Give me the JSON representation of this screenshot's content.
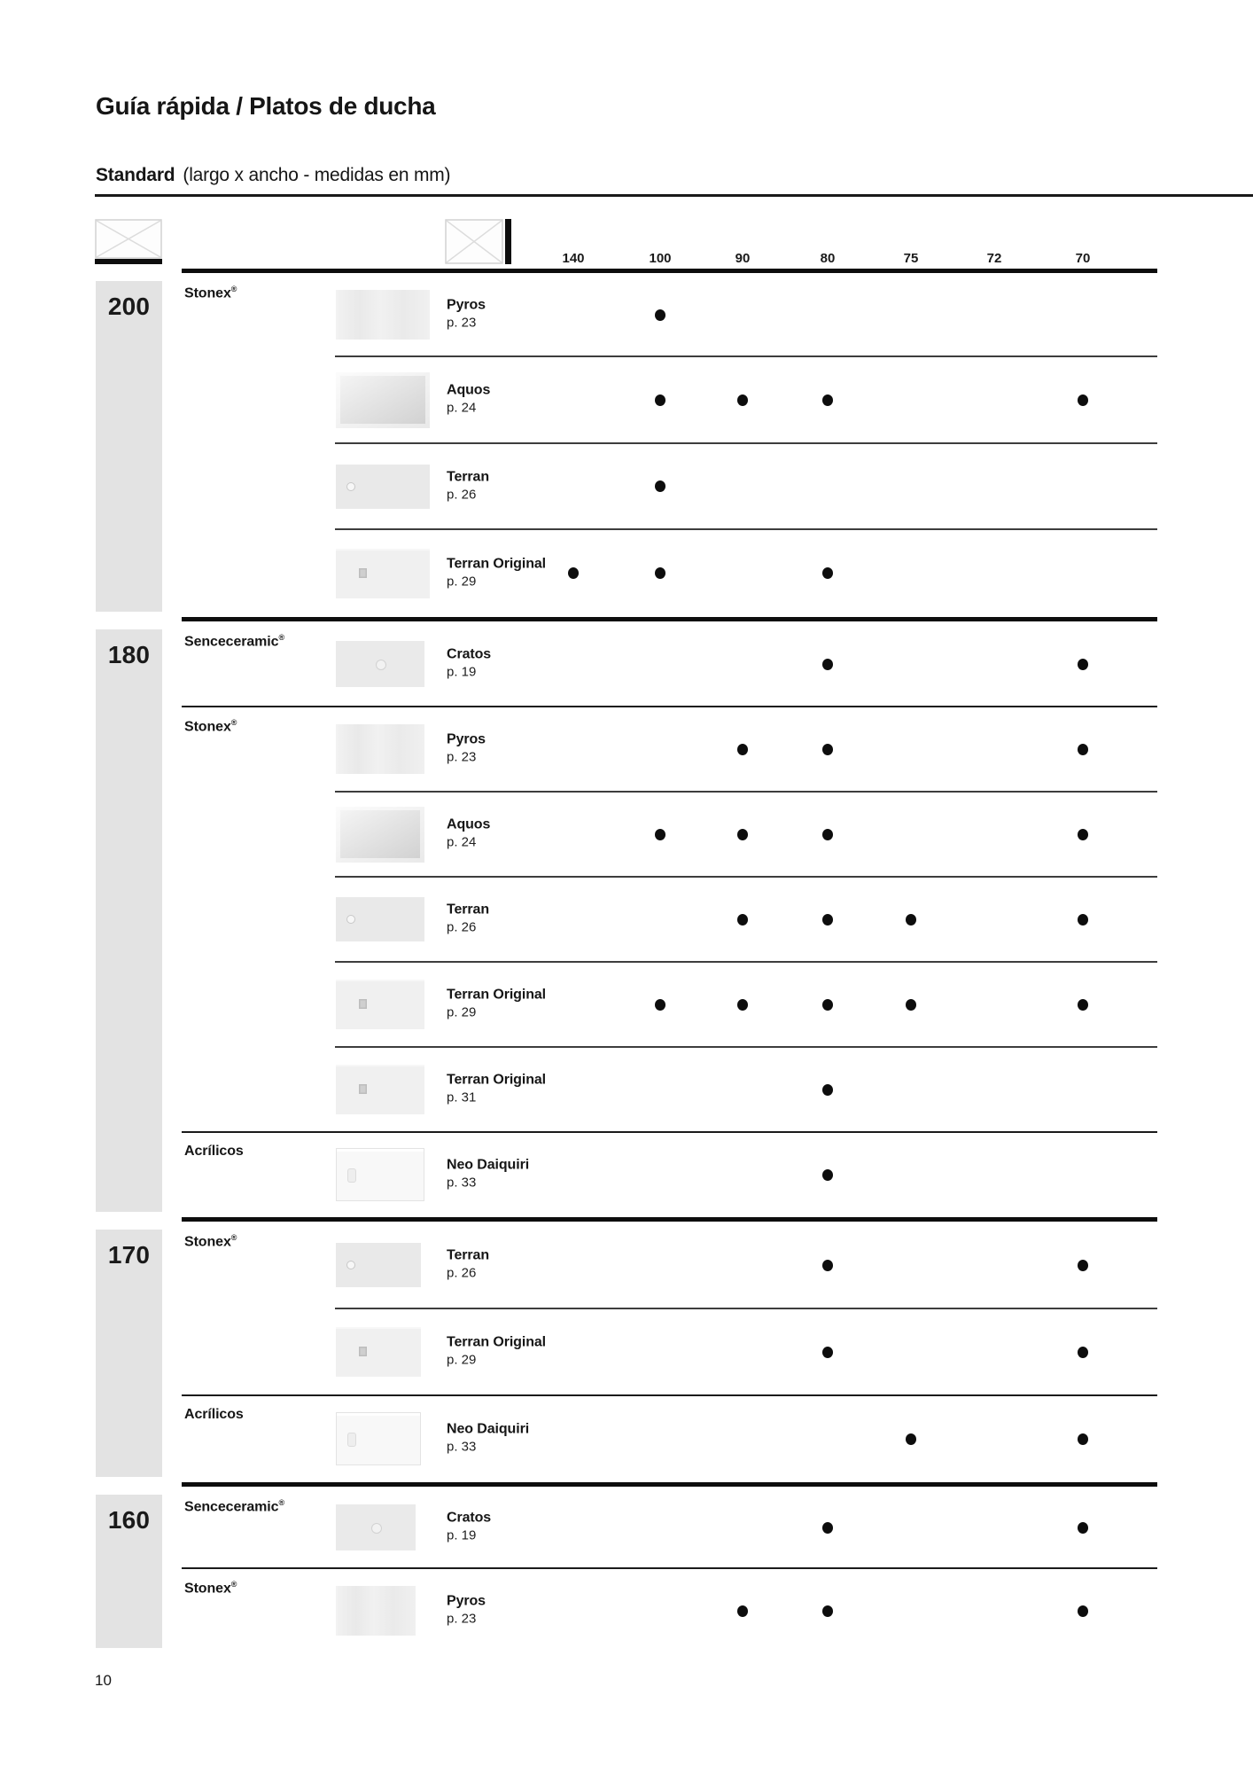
{
  "page": {
    "title": "Guía rápida / Platos de ducha",
    "subtitle_bold": "Standard",
    "subtitle_rest": "(largo x ancho - medidas en mm)",
    "page_number": "10"
  },
  "colors": {
    "text": "#161616",
    "group_box_bg": "#e3e3e3",
    "dot": "#0d0d0d",
    "rule_dark": "#0d0d0d"
  },
  "table": {
    "legend": {
      "length_icon": "tray-length-icon",
      "width_icon": "tray-width-icon"
    },
    "width_columns": [
      "140",
      "100",
      "90",
      "80",
      "75",
      "72",
      "70"
    ],
    "groups": [
      {
        "length": "200",
        "sections": [
          {
            "material": "Stonex®",
            "products": [
              {
                "name": "Pyros",
                "page": "p. 23",
                "widths": [
                  "100"
                ]
              },
              {
                "name": "Aquos",
                "page": "p. 24",
                "widths": [
                  "100",
                  "90",
                  "80",
                  "70"
                ]
              },
              {
                "name": "Terran",
                "page": "p. 26",
                "widths": [
                  "100"
                ]
              },
              {
                "name": "Terran Original",
                "page": "p. 29",
                "widths": [
                  "140",
                  "100",
                  "80"
                ]
              }
            ]
          }
        ]
      },
      {
        "length": "180",
        "sections": [
          {
            "material": "Senceceramic®",
            "products": [
              {
                "name": "Cratos",
                "page": "p. 19",
                "widths": [
                  "80",
                  "70"
                ]
              }
            ]
          },
          {
            "material": "Stonex®",
            "products": [
              {
                "name": "Pyros",
                "page": "p. 23",
                "widths": [
                  "90",
                  "80",
                  "70"
                ]
              },
              {
                "name": "Aquos",
                "page": "p. 24",
                "widths": [
                  "100",
                  "90",
                  "80",
                  "70"
                ]
              },
              {
                "name": "Terran",
                "page": "p. 26",
                "widths": [
                  "90",
                  "80",
                  "75",
                  "70"
                ]
              },
              {
                "name": "Terran Original",
                "page": "p. 29",
                "widths": [
                  "100",
                  "90",
                  "80",
                  "75",
                  "70"
                ]
              },
              {
                "name": "Terran Original",
                "page": "p. 31",
                "widths": [
                  "80"
                ]
              }
            ]
          },
          {
            "material": "Acrílicos",
            "products": [
              {
                "name": "Neo Daiquiri",
                "page": "p. 33",
                "widths": [
                  "80"
                ]
              }
            ]
          }
        ]
      },
      {
        "length": "170",
        "sections": [
          {
            "material": "Stonex®",
            "products": [
              {
                "name": "Terran",
                "page": "p. 26",
                "widths": [
                  "80",
                  "70"
                ]
              },
              {
                "name": "Terran Original",
                "page": "p. 29",
                "widths": [
                  "80",
                  "70"
                ]
              }
            ]
          },
          {
            "material": "Acrílicos",
            "products": [
              {
                "name": "Neo Daiquiri",
                "page": "p. 33",
                "widths": [
                  "75",
                  "70"
                ]
              }
            ]
          }
        ]
      },
      {
        "length": "160",
        "sections": [
          {
            "material": "Senceceramic®",
            "products": [
              {
                "name": "Cratos",
                "page": "p. 19",
                "widths": [
                  "80",
                  "70"
                ]
              }
            ]
          },
          {
            "material": "Stonex®",
            "products": [
              {
                "name": "Pyros",
                "page": "p. 23",
                "widths": [
                  "90",
                  "80",
                  "70"
                ]
              }
            ]
          }
        ]
      }
    ]
  }
}
